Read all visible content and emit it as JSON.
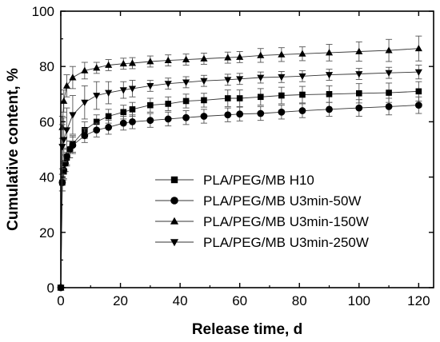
{
  "chart_data": {
    "type": "line",
    "title": "",
    "xlabel": "Release time, d",
    "ylabel": "Cumulative content, %",
    "xlim": [
      0,
      125
    ],
    "ylim": [
      0,
      100
    ],
    "x_ticks": [
      0,
      20,
      40,
      60,
      80,
      100,
      120
    ],
    "y_ticks": [
      0,
      20,
      40,
      60,
      80,
      100
    ],
    "grid": false,
    "legend_position": "center-right",
    "series": [
      {
        "name": "PLA/PEG/MB H10",
        "marker": "square",
        "x": [
          0,
          0.5,
          1,
          1.5,
          2,
          3,
          4,
          8,
          12,
          16,
          21,
          24,
          30,
          36,
          42,
          48,
          56,
          60,
          67,
          74,
          81,
          90,
          100,
          110,
          120
        ],
        "y": [
          0,
          38,
          42,
          45,
          47,
          50,
          52,
          57,
          60,
          62,
          63.5,
          64.5,
          66,
          66.5,
          67.5,
          67.8,
          68.5,
          68.5,
          69,
          69.5,
          69.8,
          70,
          70.3,
          70.5,
          71
        ],
        "err": [
          0,
          3,
          3,
          3,
          3,
          3,
          3,
          3,
          2.5,
          2.5,
          2.5,
          2.5,
          2.5,
          2.5,
          2.5,
          2.5,
          3,
          3,
          3,
          3,
          3,
          3,
          3.5,
          3.5,
          3.5
        ]
      },
      {
        "name": "PLA/PEG/MB U3min-50W",
        "marker": "circle",
        "x": [
          0,
          0.5,
          1,
          1.5,
          2,
          3,
          4,
          8,
          12,
          16,
          21,
          24,
          30,
          36,
          42,
          48,
          56,
          60,
          67,
          74,
          81,
          90,
          100,
          110,
          120
        ],
        "y": [
          0,
          38,
          42.5,
          45,
          47.5,
          50,
          51.5,
          55,
          57,
          58,
          59.5,
          60,
          60.5,
          61,
          61.5,
          62,
          62.5,
          62.8,
          63,
          63.5,
          64,
          64.5,
          65,
          65.5,
          66
        ],
        "err": [
          0,
          3,
          3,
          3,
          3,
          3,
          3,
          2.5,
          2.5,
          2.5,
          2.5,
          2.5,
          2.5,
          2.5,
          2.5,
          2.5,
          2.5,
          2.5,
          2.5,
          2.5,
          2.5,
          2.5,
          3,
          3,
          3
        ]
      },
      {
        "name": "PLA/PEG/MB U3min-150W",
        "marker": "triangle-up",
        "x": [
          0,
          0.5,
          1,
          2,
          4,
          8,
          12,
          16,
          21,
          24,
          30,
          36,
          42,
          48,
          56,
          60,
          67,
          74,
          81,
          90,
          100,
          110,
          120
        ],
        "y": [
          0,
          58,
          67.5,
          73,
          76,
          78.5,
          79.5,
          80.5,
          81,
          81.2,
          81.8,
          82.2,
          82.5,
          82.8,
          83.2,
          83.4,
          84,
          84.3,
          84.6,
          85,
          85.4,
          85.8,
          86.5
        ],
        "err": [
          0,
          4,
          4,
          4,
          4,
          3,
          2,
          2,
          2,
          2,
          2,
          2,
          2,
          2,
          2,
          2,
          2.5,
          2.5,
          2.5,
          3,
          3.5,
          4,
          4.5
        ]
      },
      {
        "name": "PLA/PEG/MB U3min-250W",
        "marker": "triangle-down",
        "x": [
          0,
          0.5,
          1,
          2,
          4,
          8,
          12,
          16,
          21,
          24,
          30,
          36,
          42,
          48,
          56,
          60,
          67,
          74,
          81,
          90,
          100,
          110,
          120
        ],
        "y": [
          0,
          51,
          53.5,
          57,
          62.5,
          67,
          69.5,
          70.5,
          71.5,
          72,
          73,
          73.8,
          74.3,
          74.8,
          75.2,
          75.5,
          76,
          76.2,
          76.5,
          77,
          77.3,
          77.7,
          78
        ],
        "err": [
          0,
          8,
          8,
          8,
          7,
          6,
          5,
          4,
          3,
          3,
          2,
          2,
          2,
          2,
          2,
          2,
          2,
          2,
          2,
          2,
          2,
          2,
          2.5
        ]
      }
    ]
  }
}
